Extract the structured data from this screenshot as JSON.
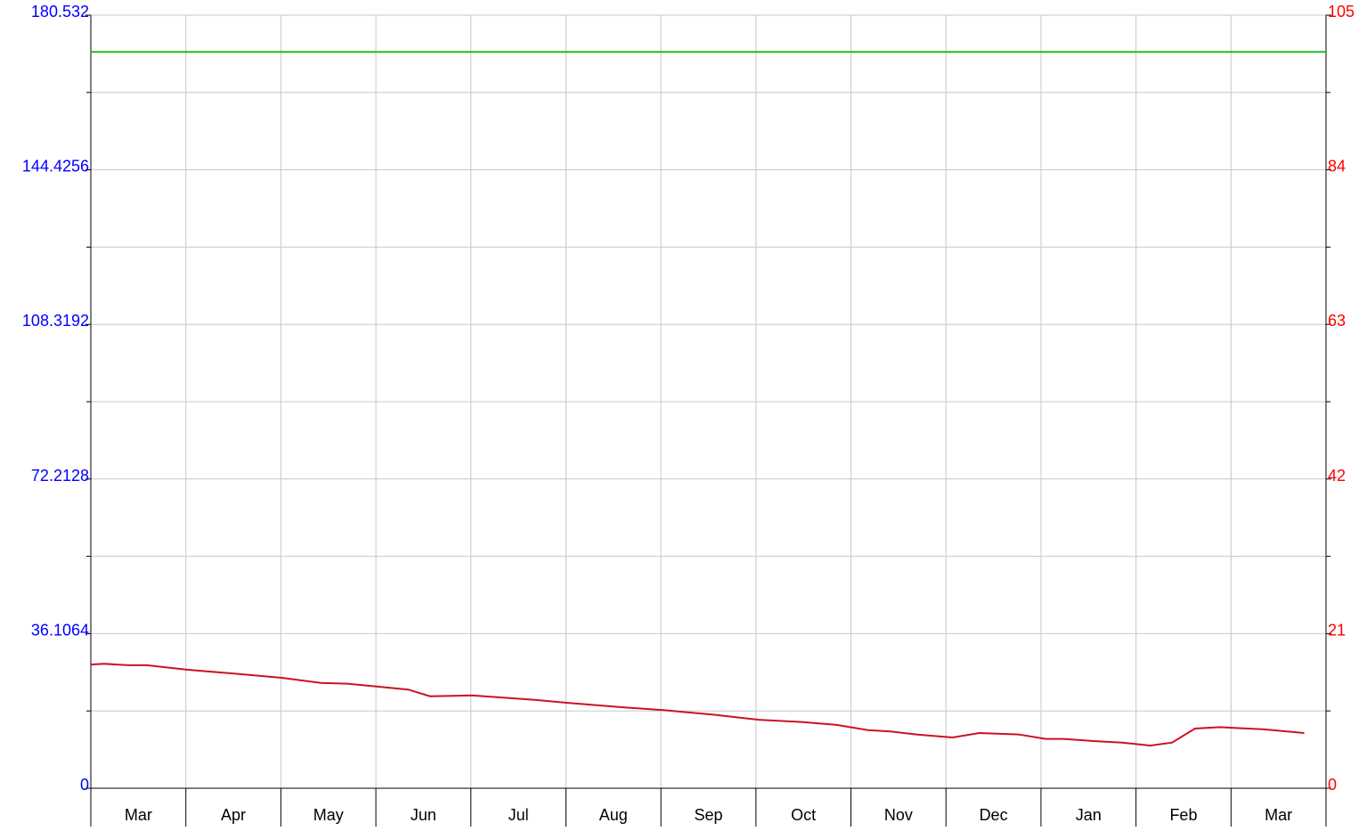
{
  "chart_data": {
    "type": "line",
    "categories": [
      "Mar",
      "Apr",
      "May",
      "Jun",
      "Jul",
      "Aug",
      "Sep",
      "Oct",
      "Nov",
      "Dec",
      "Jan",
      "Feb",
      "Mar"
    ],
    "xlim": [
      0,
      13
    ],
    "ylim": [
      0,
      180.532
    ],
    "yticks": [
      0,
      36.1064,
      72.2128,
      108.3192,
      144.4256,
      180.532
    ],
    "yminorticks": [
      18.0532,
      54.1596,
      90.266,
      126.3724,
      162.4788
    ],
    "y2lim": [
      0,
      105
    ],
    "y2ticks": [
      0,
      21,
      42,
      63,
      84,
      105
    ],
    "y2minorticks": [
      10.5,
      31.5,
      52.5,
      73.5,
      94.5
    ],
    "grid": true,
    "ytick_color": "#0000ff",
    "y2tick_color": "#ff0000",
    "series": [
      {
        "color": "#22bb22",
        "axis": "y2",
        "x": [
          0,
          13
        ],
        "values": [
          100,
          100
        ]
      },
      {
        "color": "#cc1122",
        "axis": "y2",
        "x": [
          0,
          0.14,
          0.4,
          0.59,
          1.01,
          1.48,
          2.01,
          2.42,
          2.7,
          3.02,
          3.34,
          3.57,
          4.01,
          4.67,
          5.02,
          5.6,
          6.04,
          6.54,
          7.03,
          7.48,
          7.85,
          8.18,
          8.42,
          8.7,
          9.07,
          9.35,
          9.77,
          10.05,
          10.24,
          10.57,
          10.85,
          11.15,
          11.38,
          11.62,
          11.88,
          12.35,
          12.77
        ],
        "values": [
          16.8,
          16.9,
          16.7,
          16.7,
          16.1,
          15.6,
          15.0,
          14.3,
          14.2,
          13.8,
          13.4,
          12.5,
          12.6,
          12.0,
          11.6,
          11.0,
          10.6,
          10.0,
          9.3,
          9.0,
          8.6,
          7.9,
          7.7,
          7.3,
          6.9,
          7.5,
          7.3,
          6.7,
          6.7,
          6.4,
          6.2,
          5.8,
          6.2,
          8.1,
          8.3,
          8.0,
          7.5
        ]
      }
    ]
  }
}
